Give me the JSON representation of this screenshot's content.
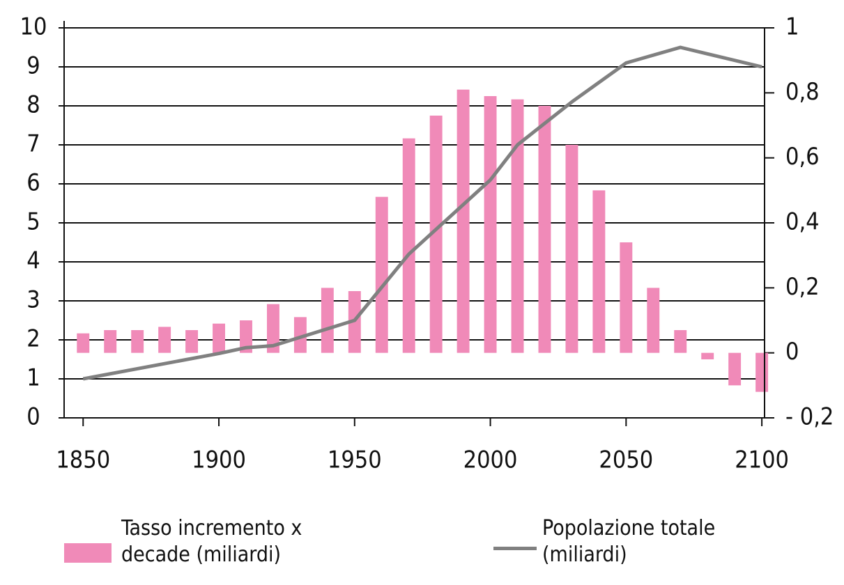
{
  "chart_data": {
    "type": "bar",
    "xlim": [
      1843,
      2101
    ],
    "xticks": [
      1850,
      1900,
      1950,
      2000,
      2050,
      2100
    ],
    "ylim": [
      0,
      10
    ],
    "yticks": [
      0,
      1,
      2,
      3,
      4,
      5,
      6,
      7,
      8,
      9,
      10
    ],
    "y2lim": [
      -0.2,
      1
    ],
    "y2ticks": [
      {
        "value": -0.2,
        "label": "- 0,2"
      },
      0,
      {
        "value": 0.2,
        "label": "0,2"
      },
      {
        "value": 0.4,
        "label": "0,4"
      },
      {
        "value": 0.6,
        "label": "0,6"
      },
      {
        "value": 0.8,
        "label": "0,8"
      },
      1
    ],
    "grid": true,
    "legend": "bottom",
    "series": [
      {
        "name": "Tasso incremento x decade (miliardi)",
        "type": "bar",
        "axis": "y2",
        "color": "#f08ab8",
        "x": [
          1850,
          1860,
          1870,
          1880,
          1890,
          1900,
          1910,
          1920,
          1930,
          1940,
          1950,
          1960,
          1970,
          1980,
          1990,
          2000,
          2010,
          2020,
          2030,
          2040,
          2050,
          2060,
          2070,
          2080,
          2090,
          2100
        ],
        "values": [
          0.06,
          0.07,
          0.07,
          0.08,
          0.07,
          0.09,
          0.1,
          0.15,
          0.11,
          0.2,
          0.19,
          0.48,
          0.66,
          0.73,
          0.81,
          0.79,
          0.78,
          0.76,
          0.64,
          0.5,
          0.34,
          0.2,
          0.07,
          -0.02,
          -0.1,
          -0.12
        ]
      },
      {
        "name": "Popolazione totale (miliardi)",
        "type": "line",
        "color": "#808080",
        "x": [
          1850,
          1900,
          1910,
          1920,
          1950,
          1970,
          2000,
          2010,
          2030,
          2050,
          2070,
          2100
        ],
        "values": [
          1.0,
          1.65,
          1.8,
          1.85,
          2.5,
          4.2,
          6.1,
          7.0,
          8.1,
          9.1,
          9.5,
          9.0
        ]
      }
    ]
  }
}
